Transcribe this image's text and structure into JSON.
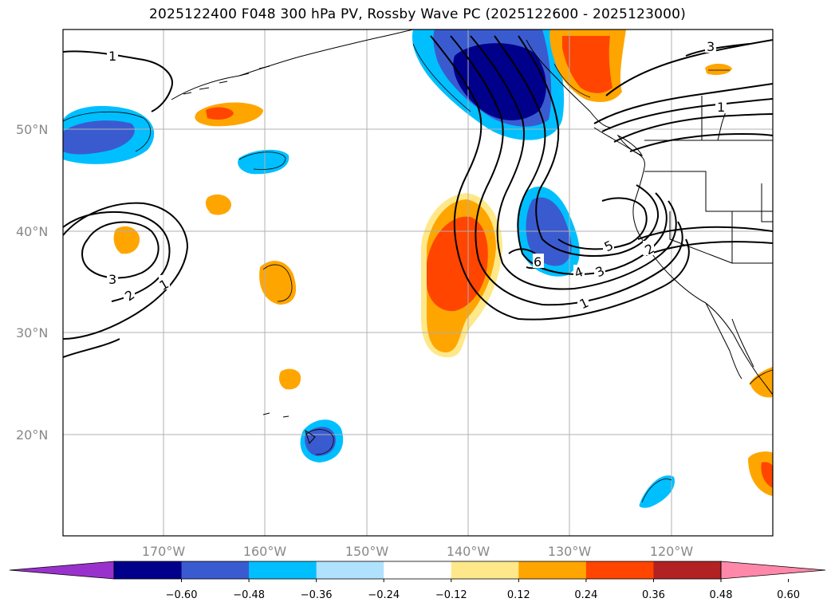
{
  "title": "2025122400 F048 300 hPa PV, Rossby Wave PC (2025122600 - 2025123000)",
  "axes": {
    "lat_ticks": [
      "50°N",
      "40°N",
      "30°N",
      "20°N"
    ],
    "lon_ticks": [
      "170°W",
      "160°W",
      "150°W",
      "140°W",
      "130°W",
      "120°W"
    ]
  },
  "contour_labels": [
    "1",
    "1",
    "2",
    "3",
    "1",
    "2",
    "3",
    "4",
    "5",
    "6",
    "1",
    "3"
  ],
  "colorbar": {
    "ticks": [
      "−0.60",
      "−0.48",
      "−0.36",
      "−0.24",
      "−0.12",
      "0.12",
      "0.24",
      "0.36",
      "0.48",
      "0.60"
    ],
    "colors": [
      "#9932cc",
      "#00008b",
      "#3a5bd0",
      "#00bfff",
      "#b0e2ff",
      "#ffffff",
      "#ffe88a",
      "#ffa500",
      "#ff4500",
      "#b22222",
      "#ff88aa"
    ]
  },
  "palette": {
    "neg_strong": "#00008b",
    "neg_mid": "#3a5bd0",
    "neg_light": "#00bfff",
    "neg_pale": "#b0e2ff",
    "pos_pale": "#ffe88a",
    "pos_light": "#ffa500",
    "pos_mid": "#ff4500"
  }
}
